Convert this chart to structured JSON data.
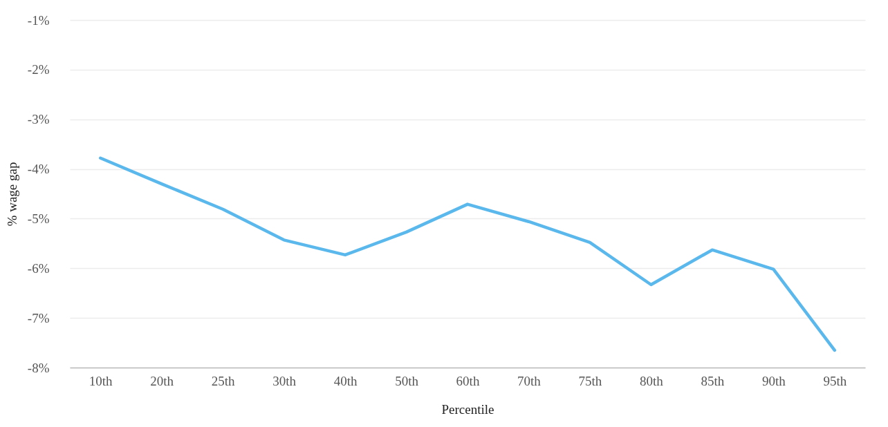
{
  "chart_data": {
    "type": "line",
    "xlabel": "Percentile",
    "ylabel": "% wage gap",
    "categories": [
      "10th",
      "20th",
      "25th",
      "30th",
      "40th",
      "50th",
      "60th",
      "70th",
      "75th",
      "80th",
      "85th",
      "90th",
      "95th"
    ],
    "series": [
      {
        "color": "#5bb8ec",
        "values": [
          -3.78,
          -4.3,
          -4.81,
          -5.43,
          -5.73,
          -5.27,
          -4.71,
          -5.06,
          -5.48,
          -6.33,
          -5.63,
          -6.02,
          -7.65
        ]
      }
    ],
    "ylim": [
      -8,
      -1
    ],
    "yticks": [
      {
        "value": -8,
        "label": "-8%"
      },
      {
        "value": -7,
        "label": "-7%"
      },
      {
        "value": -6,
        "label": "-6%"
      },
      {
        "value": -5,
        "label": "-5%"
      },
      {
        "value": -4,
        "label": "-4%"
      },
      {
        "value": -3,
        "label": "-3%"
      },
      {
        "value": -2,
        "label": "-2%"
      },
      {
        "value": -1,
        "label": "-1%"
      }
    ],
    "grid": "y",
    "legend": false,
    "marker": "none",
    "line_style": "solid"
  }
}
